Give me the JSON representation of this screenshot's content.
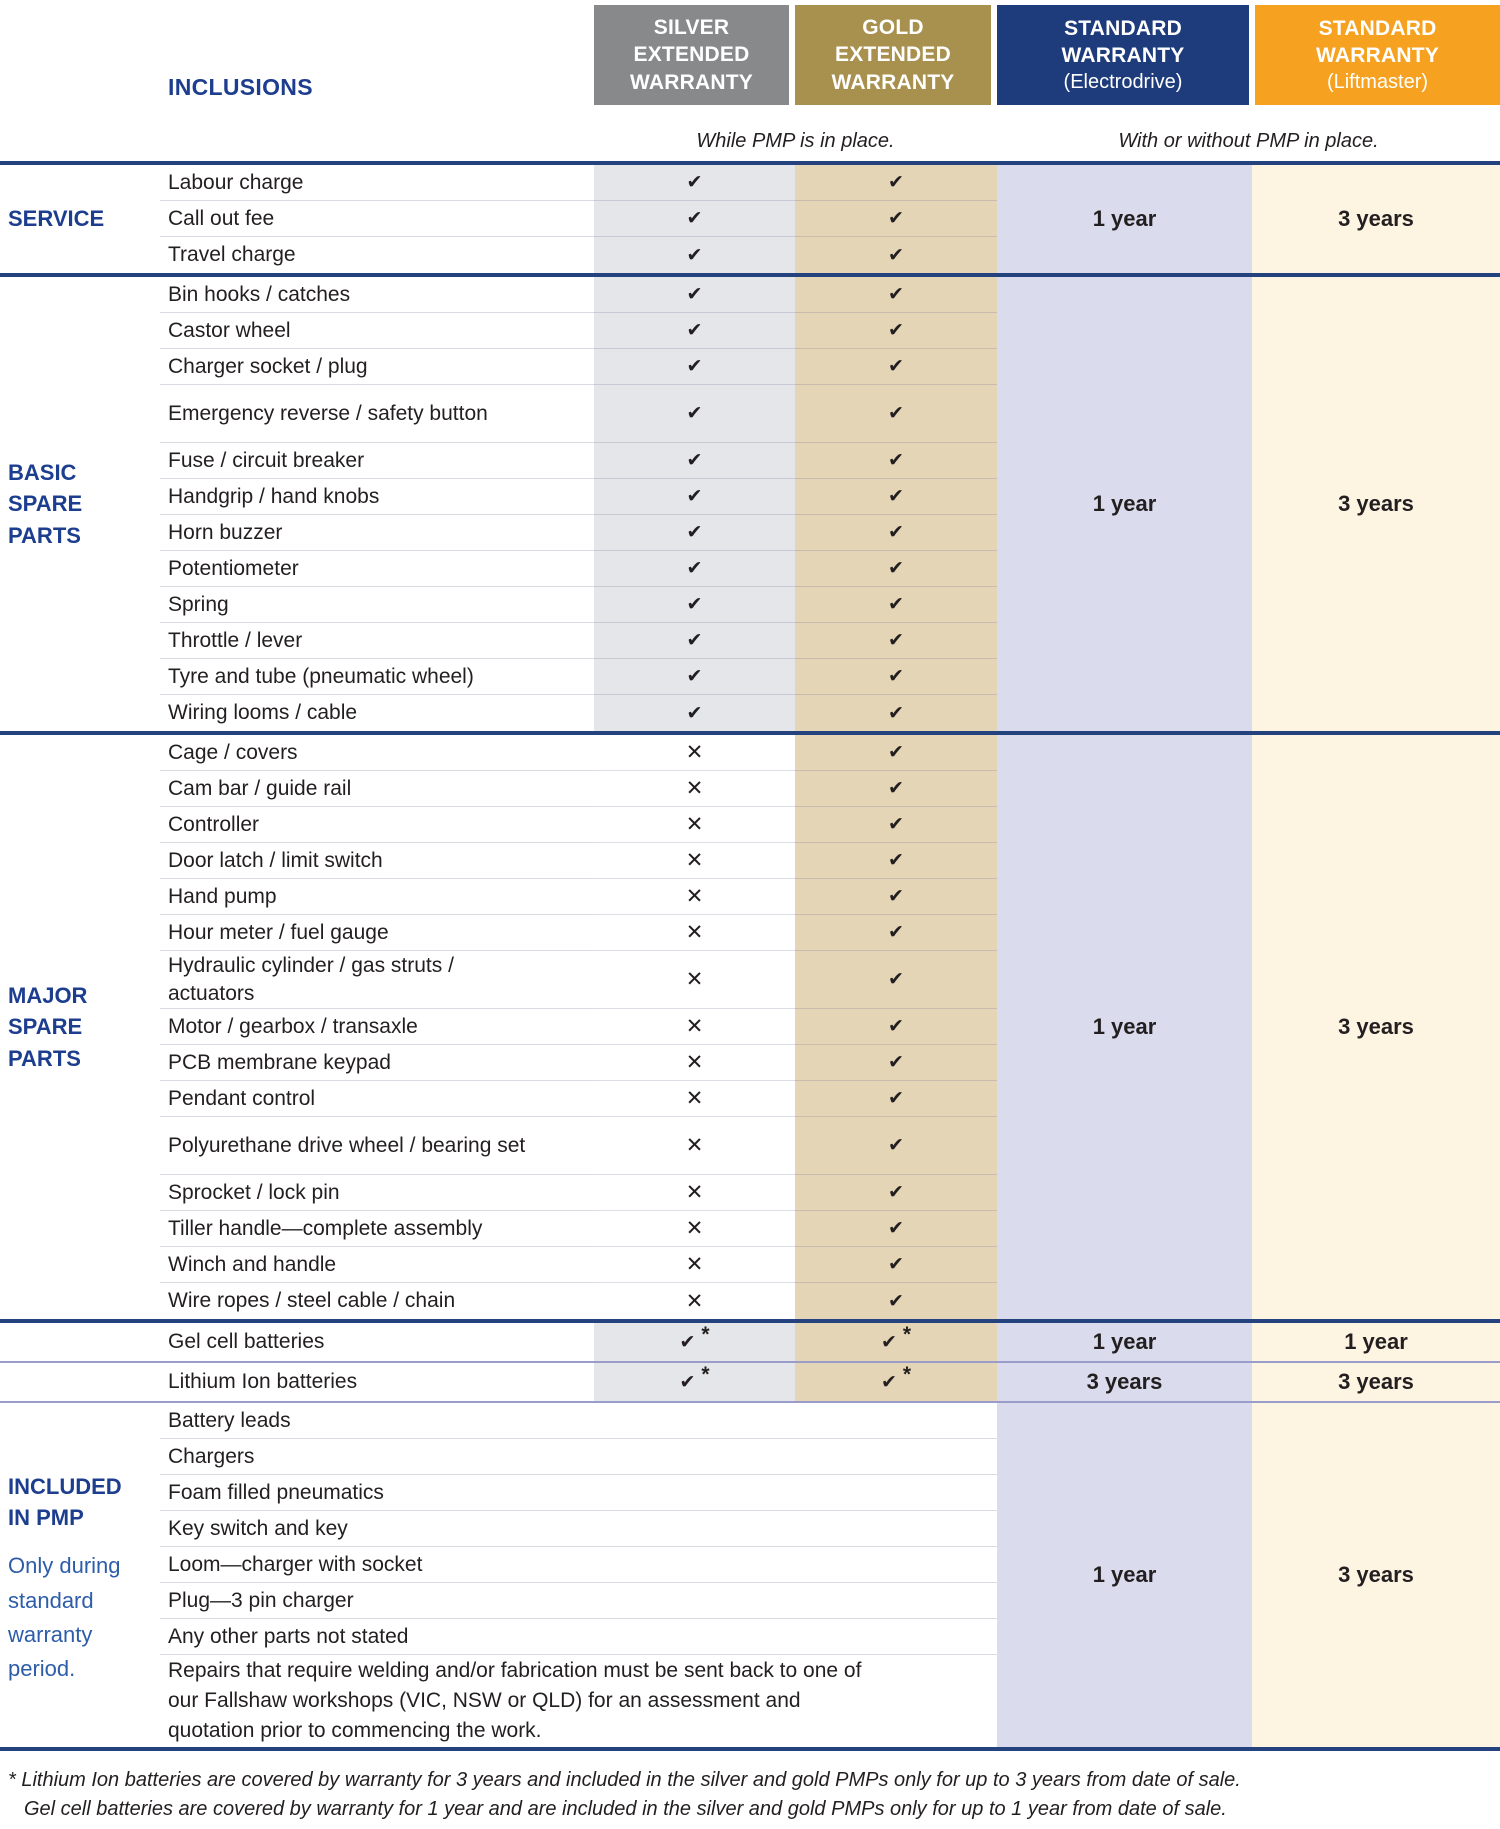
{
  "header": {
    "inclusions_label": "INCLUSIONS",
    "pmp_note_left": "While PMP is in place.",
    "pmp_note_right": "With or without PMP in place.",
    "columns": [
      {
        "id": "silver-extended",
        "lines": [
          "SILVER",
          "EXTENDED",
          "WARRANTY"
        ],
        "subtitle": "",
        "bg": "#88898b"
      },
      {
        "id": "gold-extended",
        "lines": [
          "GOLD",
          "EXTENDED",
          "WARRANTY"
        ],
        "subtitle": "",
        "bg": "#a8904f"
      },
      {
        "id": "standard-electrodrive",
        "lines": [
          "STANDARD",
          "WARRANTY"
        ],
        "subtitle": "(Electrodrive)",
        "bg": "#1e3c7c"
      },
      {
        "id": "standard-liftmaster",
        "lines": [
          "STANDARD",
          "WARRANTY"
        ],
        "subtitle": "(Liftmaster)",
        "bg": "#f6a11f"
      }
    ]
  },
  "icons": {
    "check": "✔",
    "cross": "✕",
    "star": "*"
  },
  "colors": {
    "heading-blue": "#1d3e8f",
    "note-blue": "#2d5da9",
    "line-navy": "#24427e",
    "line-thin": "#9a9dca",
    "sep": "#d9dae2",
    "band-silver": "#e5e6e9",
    "band-gold": "#e4d5b6",
    "band-electro": "#dadced",
    "band-lift": "#fdf4e2"
  },
  "sections": [
    {
      "type": "marks",
      "name": "service",
      "group_label": "SERVICE",
      "silver_band": true,
      "electrodrive_value": "1 year",
      "liftmaster_value": "3 years",
      "divider_after": "navy",
      "rows": [
        {
          "label": "Labour charge",
          "silver": "check",
          "gold": "check"
        },
        {
          "label": "Call out fee",
          "silver": "check",
          "gold": "check"
        },
        {
          "label": "Travel charge",
          "silver": "check",
          "gold": "check"
        }
      ]
    },
    {
      "type": "marks",
      "name": "basic-spare-parts",
      "group_label": "BASIC SPARE PARTS",
      "silver_band": true,
      "electrodrive_value": "1 year",
      "liftmaster_value": "3 years",
      "divider_after": "navy",
      "rows": [
        {
          "label": "Bin hooks / catches",
          "silver": "check",
          "gold": "check"
        },
        {
          "label": "Castor wheel",
          "silver": "check",
          "gold": "check"
        },
        {
          "label": "Charger socket / plug",
          "silver": "check",
          "gold": "check"
        },
        {
          "label": "Emergency reverse / safety button",
          "silver": "check",
          "gold": "check",
          "tall": true
        },
        {
          "label": "Fuse / circuit breaker",
          "silver": "check",
          "gold": "check"
        },
        {
          "label": "Handgrip / hand knobs",
          "silver": "check",
          "gold": "check"
        },
        {
          "label": "Horn buzzer",
          "silver": "check",
          "gold": "check"
        },
        {
          "label": "Potentiometer",
          "silver": "check",
          "gold": "check"
        },
        {
          "label": "Spring",
          "silver": "check",
          "gold": "check"
        },
        {
          "label": "Throttle / lever",
          "silver": "check",
          "gold": "check"
        },
        {
          "label": "Tyre and tube (pneumatic wheel)",
          "silver": "check",
          "gold": "check"
        },
        {
          "label": "Wiring looms / cable",
          "silver": "check",
          "gold": "check"
        }
      ]
    },
    {
      "type": "marks",
      "name": "major-spare-parts",
      "group_label": "MAJOR SPARE PARTS",
      "silver_band": false,
      "electrodrive_value": "1 year",
      "liftmaster_value": "3 years",
      "divider_after": "navy",
      "rows": [
        {
          "label": "Cage / covers",
          "silver": "cross",
          "gold": "check"
        },
        {
          "label": "Cam bar / guide rail",
          "silver": "cross",
          "gold": "check"
        },
        {
          "label": "Controller",
          "silver": "cross",
          "gold": "check"
        },
        {
          "label": "Door latch / limit switch",
          "silver": "cross",
          "gold": "check"
        },
        {
          "label": "Hand pump",
          "silver": "cross",
          "gold": "check"
        },
        {
          "label": "Hour meter / fuel gauge",
          "silver": "cross",
          "gold": "check"
        },
        {
          "label": "Hydraulic cylinder / gas struts / actuators",
          "silver": "cross",
          "gold": "check",
          "tall": true
        },
        {
          "label": "Motor / gearbox / transaxle",
          "silver": "cross",
          "gold": "check"
        },
        {
          "label": "PCB membrane keypad",
          "silver": "cross",
          "gold": "check"
        },
        {
          "label": "Pendant control",
          "silver": "cross",
          "gold": "check"
        },
        {
          "label": "Polyurethane drive wheel / bearing set",
          "silver": "cross",
          "gold": "check",
          "tall": true
        },
        {
          "label": "Sprocket / lock pin",
          "silver": "cross",
          "gold": "check"
        },
        {
          "label": "Tiller handle—complete assembly",
          "silver": "cross",
          "gold": "check"
        },
        {
          "label": "Winch and handle",
          "silver": "cross",
          "gold": "check"
        },
        {
          "label": "Wire ropes / steel cable / chain",
          "silver": "cross",
          "gold": "check"
        }
      ]
    },
    {
      "type": "battery",
      "name": "gel-cell-batteries",
      "divider_after": "thin",
      "rows": [
        {
          "label": "Gel cell batteries",
          "silver": "check-star",
          "gold": "check-star",
          "electrodrive_value": "1 year",
          "liftmaster_value": "1 year"
        }
      ]
    },
    {
      "type": "battery",
      "name": "lithium-ion-batteries",
      "divider_after": "thin",
      "rows": [
        {
          "label": "Lithium Ion batteries",
          "silver": "check-star",
          "gold": "check-star",
          "electrodrive_value": "3 years",
          "liftmaster_value": "3 years"
        }
      ]
    },
    {
      "type": "pmp",
      "name": "included-in-pmp",
      "group_label": "INCLUDED IN PMP",
      "group_note": "Only during standard warranty period.",
      "electrodrive_value": "1 year",
      "liftmaster_value": "3 years",
      "divider_after": "navy",
      "rows": [
        {
          "label": "Battery leads"
        },
        {
          "label": "Chargers"
        },
        {
          "label": "Foam filled pneumatics"
        },
        {
          "label": "Key switch and key"
        },
        {
          "label": "Loom—charger with socket"
        },
        {
          "label": "Plug—3 pin charger"
        },
        {
          "label": "Any other parts not stated"
        },
        {
          "label": "Repairs that require welding and/or fabrication must be sent back to one of our Fallshaw workshops (VIC, NSW or QLD) for an assessment and quotation prior to commencing the work.",
          "tall": true
        }
      ]
    }
  ],
  "footnotes": [
    "* Lithium Ion batteries are covered by warranty for 3 years and included in the silver and gold PMPs only for up to 3 years from date of sale.",
    "Gel cell batteries are covered by warranty for 1 year and are included in the silver and gold PMPs only for up to 1 year from date of sale."
  ]
}
